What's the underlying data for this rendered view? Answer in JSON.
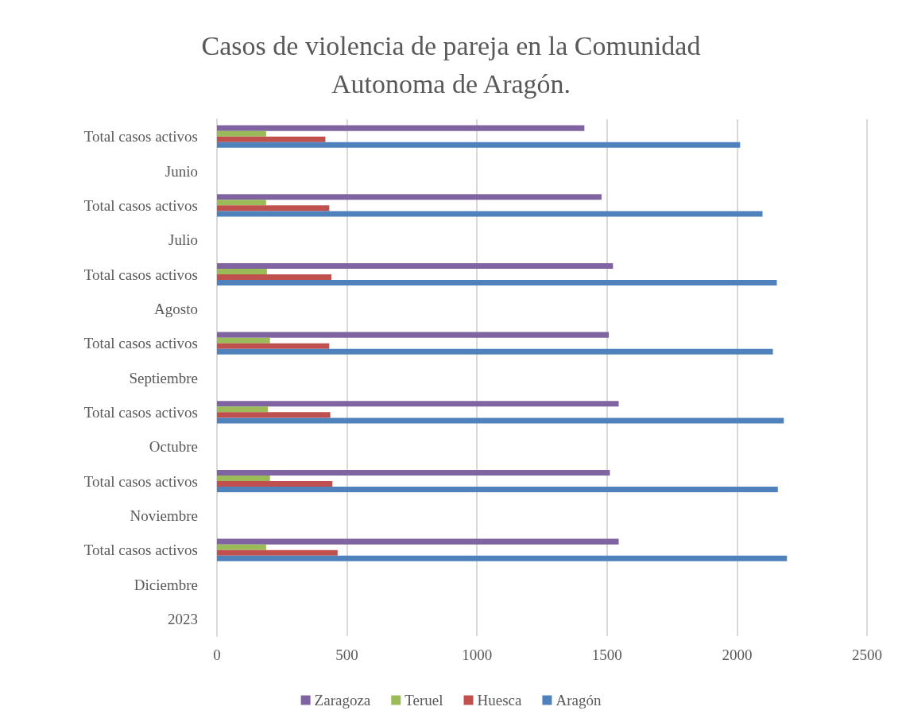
{
  "chart_data": {
    "type": "bar",
    "orientation": "horizontal",
    "title": "Casos de violencia de pareja en la Comunidad\nAutonoma de Aragón.",
    "categories": [
      "Total casos activos",
      "Junio",
      "Total casos activos",
      "Julio",
      "Total casos activos",
      "Agosto",
      "Total casos activos",
      "Septiembre",
      "Total casos activos",
      "Octubre",
      "Total casos activos",
      "Noviembre",
      "Total casos activos",
      "Diciembre",
      "2023"
    ],
    "series": [
      {
        "name": "Zaragoza",
        "color": "#8064a2",
        "values": [
          1413,
          null,
          1479,
          null,
          1523,
          null,
          1507,
          null,
          1545,
          null,
          1511,
          null,
          1545,
          null,
          null
        ]
      },
      {
        "name": "Teruel",
        "color": "#9bbb59",
        "values": [
          189,
          null,
          189,
          null,
          192,
          null,
          204,
          null,
          196,
          null,
          204,
          null,
          189,
          null,
          null
        ]
      },
      {
        "name": "Huesca",
        "color": "#c0504d",
        "values": [
          417,
          null,
          432,
          null,
          440,
          null,
          432,
          null,
          436,
          null,
          444,
          null,
          464,
          null,
          null
        ]
      },
      {
        "name": "Aragón",
        "color": "#4f81bd",
        "values": [
          2012,
          null,
          2098,
          null,
          2153,
          null,
          2138,
          null,
          2180,
          null,
          2157,
          null,
          2192,
          null,
          null
        ]
      }
    ],
    "xlim": [
      0,
      2500
    ],
    "xticks": [
      0,
      500,
      1000,
      1500,
      2000,
      2500
    ],
    "grid": "x",
    "legend": "bottom"
  }
}
